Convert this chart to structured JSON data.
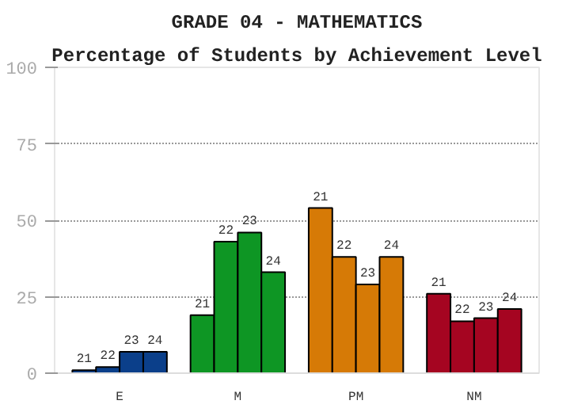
{
  "chart_data": {
    "type": "bar",
    "title": "GRADE 04 - MATHEMATICS",
    "subtitle": "Percentage of Students by Achievement Level",
    "categories": [
      "E",
      "M",
      "PM",
      "NM"
    ],
    "series": [
      {
        "name": "21",
        "colors": [
          "#0b3f8a",
          "#0e9624",
          "#d67a06",
          "#a50521"
        ],
        "values": [
          1,
          19,
          54,
          26
        ]
      },
      {
        "name": "22",
        "colors": [
          "#0b3f8a",
          "#0e9624",
          "#d67a06",
          "#a50521"
        ],
        "values": [
          2,
          43,
          38,
          17
        ]
      },
      {
        "name": "23",
        "colors": [
          "#0b3f8a",
          "#0e9624",
          "#d67a06",
          "#a50521"
        ],
        "values": [
          7,
          46,
          29,
          18
        ]
      },
      {
        "name": "24",
        "colors": [
          "#0b3f8a",
          "#0e9624",
          "#d67a06",
          "#a50521"
        ],
        "values": [
          7,
          33,
          38,
          21
        ]
      }
    ],
    "ylim": [
      0,
      100
    ],
    "yticks": [
      0,
      25,
      50,
      75,
      100
    ],
    "grid": "y"
  }
}
